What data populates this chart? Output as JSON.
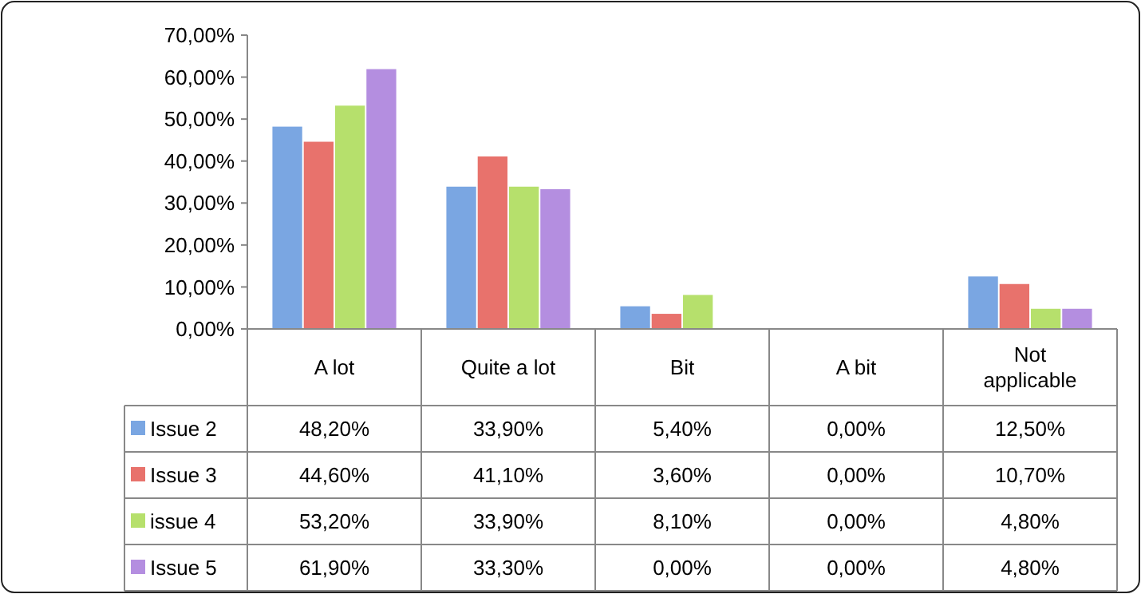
{
  "chart_data": {
    "type": "bar",
    "categories": [
      "A lot",
      "Quite a lot",
      "Bit",
      "A bit",
      "Not applicable"
    ],
    "series": [
      {
        "name": "Issue 2",
        "color": "#7aa6e2",
        "values": [
          48.2,
          33.9,
          5.4,
          0,
          12.5
        ],
        "value_labels": [
          "48,20%",
          "33,90%",
          "5,40%",
          "0,00%",
          "12,50%"
        ]
      },
      {
        "name": "Issue 3",
        "color": "#e8726c",
        "values": [
          44.6,
          41.1,
          3.6,
          0,
          10.7
        ],
        "value_labels": [
          "44,60%",
          "41,10%",
          "3,60%",
          "0,00%",
          "10,70%"
        ]
      },
      {
        "name": "issue 4",
        "color": "#b6e06c",
        "values": [
          53.2,
          33.9,
          8.1,
          0,
          4.8
        ],
        "value_labels": [
          "53,20%",
          "33,90%",
          "8,10%",
          "0,00%",
          "4,80%"
        ]
      },
      {
        "name": "Issue 5",
        "color": "#b48ee0",
        "values": [
          61.9,
          33.3,
          0,
          0,
          4.8
        ],
        "value_labels": [
          "61,90%",
          "33,30%",
          "0,00%",
          "0,00%",
          "4,80%"
        ]
      }
    ],
    "ylim": [
      0,
      70
    ],
    "yticks": [
      {
        "value": 0,
        "label": "0,00%"
      },
      {
        "value": 10,
        "label": "10,00%"
      },
      {
        "value": 20,
        "label": "20,00%"
      },
      {
        "value": 30,
        "label": "30,00%"
      },
      {
        "value": 40,
        "label": "40,00%"
      },
      {
        "value": 50,
        "label": "50,00%"
      },
      {
        "value": 60,
        "label": "60,00%"
      },
      {
        "value": 70,
        "label": "70,00%"
      }
    ],
    "legend": "bottom"
  }
}
